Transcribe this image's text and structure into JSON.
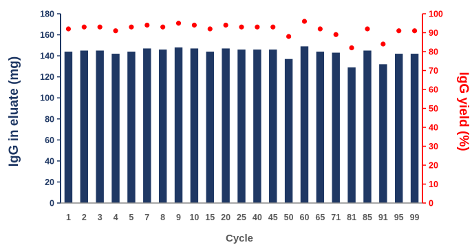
{
  "chart_data": {
    "type": "bar",
    "xlabel": "Cycle",
    "ylabel": "IgG in eluate (mg)",
    "y2label": "IgG yield (%)",
    "ylim": [
      0,
      180
    ],
    "y2lim": [
      0,
      100
    ],
    "yticks": [
      0,
      20,
      40,
      60,
      80,
      100,
      120,
      140,
      160,
      180
    ],
    "y2ticks": [
      0,
      10,
      20,
      30,
      40,
      50,
      60,
      70,
      80,
      90,
      100
    ],
    "categories": [
      "1",
      "2",
      "3",
      "4",
      "5",
      "7",
      "8",
      "9",
      "10",
      "15",
      "20",
      "25",
      "40",
      "45",
      "50",
      "60",
      "65",
      "71",
      "81",
      "85",
      "91",
      "95",
      "99"
    ],
    "series": [
      {
        "kind": "bar",
        "axis": "left",
        "color": "#1f3864",
        "values": [
          144,
          145,
          145,
          142,
          144,
          147,
          146,
          148,
          147,
          144,
          147,
          146,
          146,
          146,
          137,
          149,
          144,
          143,
          129,
          145,
          132,
          142,
          142
        ]
      },
      {
        "kind": "scatter",
        "axis": "right",
        "color": "#ff0000",
        "values": [
          92,
          93,
          93,
          91,
          93,
          94,
          93,
          95,
          94,
          92,
          94,
          93,
          93,
          93,
          88,
          96,
          92,
          89,
          82,
          92,
          84,
          91,
          91
        ]
      }
    ],
    "grid": false,
    "legend": "none"
  }
}
